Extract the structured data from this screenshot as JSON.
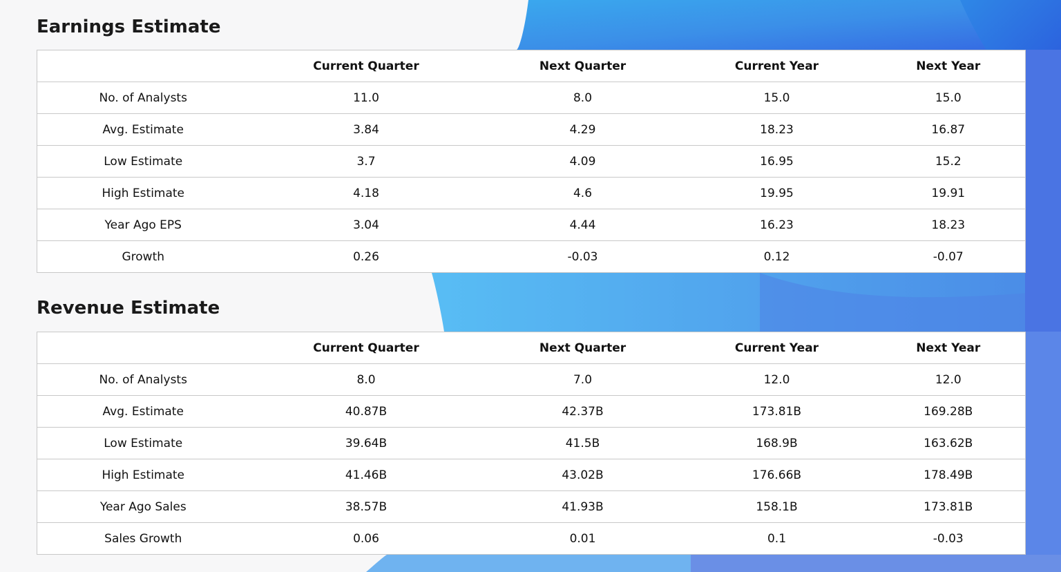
{
  "earnings": {
    "title": "Earnings Estimate",
    "headers": [
      "",
      "Current Quarter",
      "Next Quarter",
      "Current Year",
      "Next Year"
    ],
    "rows": [
      {
        "label": "No. of Analysts",
        "values": [
          "11.0",
          "8.0",
          "15.0",
          "15.0"
        ]
      },
      {
        "label": "Avg. Estimate",
        "values": [
          "3.84",
          "4.29",
          "18.23",
          "16.87"
        ]
      },
      {
        "label": "Low Estimate",
        "values": [
          "3.7",
          "4.09",
          "16.95",
          "15.2"
        ]
      },
      {
        "label": "High Estimate",
        "values": [
          "4.18",
          "4.6",
          "19.95",
          "19.91"
        ]
      },
      {
        "label": "Year Ago EPS",
        "values": [
          "3.04",
          "4.44",
          "16.23",
          "18.23"
        ]
      },
      {
        "label": "Growth",
        "values": [
          "0.26",
          "-0.03",
          "0.12",
          "-0.07"
        ]
      }
    ]
  },
  "revenue": {
    "title": "Revenue Estimate",
    "headers": [
      "",
      "Current Quarter",
      "Next Quarter",
      "Current Year",
      "Next Year"
    ],
    "rows": [
      {
        "label": "No. of Analysts",
        "values": [
          "8.0",
          "7.0",
          "12.0",
          "12.0"
        ]
      },
      {
        "label": "Avg. Estimate",
        "values": [
          "40.87B",
          "42.37B",
          "173.81B",
          "169.28B"
        ]
      },
      {
        "label": "Low Estimate",
        "values": [
          "39.64B",
          "41.5B",
          "168.9B",
          "163.62B"
        ]
      },
      {
        "label": "High Estimate",
        "values": [
          "41.46B",
          "43.02B",
          "176.66B",
          "178.49B"
        ]
      },
      {
        "label": "Year Ago Sales",
        "values": [
          "38.57B",
          "41.93B",
          "158.1B",
          "173.81B"
        ]
      },
      {
        "label": "Sales Growth",
        "values": [
          "0.06",
          "0.01",
          "0.1",
          "-0.03"
        ]
      }
    ]
  },
  "theme": {
    "background": "#f7f7f8",
    "accent_light": "#5bc0f5",
    "accent_dark": "#2f5fe0"
  }
}
